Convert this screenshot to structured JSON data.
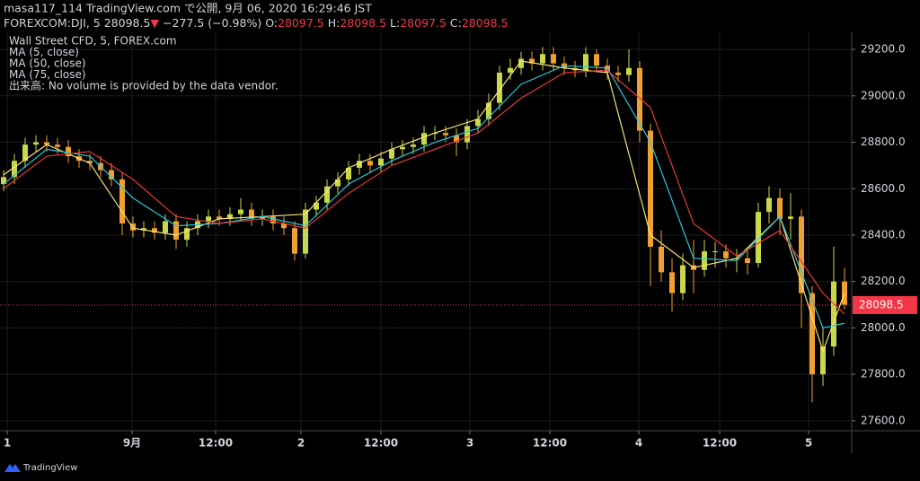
{
  "header": {
    "line1": "masa117_114 TradingView.com で公開, 9月 06, 2020 16:29:46 JST",
    "symbol": "FOREXCOM:DJI, 5",
    "price": "28098.5",
    "arrow": "▼",
    "change": "−277.5 (−0.98%)",
    "o_label": "O:",
    "o_value": "28097.5",
    "h_label": "H:",
    "h_value": "28098.5",
    "l_label": "L:",
    "l_value": "28097.5",
    "c_label": "C:",
    "c_value": "28098.5"
  },
  "footer": {
    "brand": "TradingView"
  },
  "chart_data": {
    "type": "candlestick",
    "legend": [
      "Wall Street CFD, 5, FOREX.com",
      "MA (5, close)",
      "MA (50, close)",
      "MA (75, close)",
      "出来高: No volume is provided by the data vendor."
    ],
    "up_color": "#c9d84a",
    "down_color": "#f0a030",
    "grid": true,
    "xlim": [
      0,
      948
    ],
    "xticks": [
      {
        "value": 8,
        "label": "1"
      },
      {
        "value": 147,
        "label": "9月"
      },
      {
        "value": 240,
        "label": "12:00"
      },
      {
        "value": 335,
        "label": "2"
      },
      {
        "value": 424,
        "label": "12:00"
      },
      {
        "value": 523,
        "label": "3"
      },
      {
        "value": 612,
        "label": "12:00"
      },
      {
        "value": 711,
        "label": "4"
      },
      {
        "value": 801,
        "label": "12:00"
      },
      {
        "value": 900,
        "label": "5"
      }
    ],
    "ylim": [
      27557,
      29297
    ],
    "yticks": [
      {
        "value": 27600,
        "label": "27600.0"
      },
      {
        "value": 27800,
        "label": "27800.0"
      },
      {
        "value": 28000,
        "label": "28000.0"
      },
      {
        "value": 28200,
        "label": "28200.0"
      },
      {
        "value": 28400,
        "label": "28400.0"
      },
      {
        "value": 28600,
        "label": "28600.0"
      },
      {
        "value": 28800,
        "label": "28800.0"
      },
      {
        "value": 29000,
        "label": "29000.0"
      },
      {
        "value": 29200,
        "label": "29200.0"
      }
    ],
    "last_price": 28098.5,
    "last_color": "#f23645",
    "candles": {
      "x": [
        4,
        16,
        28,
        40,
        52,
        64,
        76,
        88,
        100,
        112,
        124,
        136,
        148,
        160,
        172,
        184,
        196,
        208,
        220,
        232,
        244,
        256,
        268,
        280,
        292,
        304,
        316,
        328,
        340,
        352,
        364,
        376,
        388,
        400,
        412,
        424,
        436,
        448,
        460,
        472,
        484,
        496,
        508,
        520,
        532,
        544,
        556,
        568,
        580,
        592,
        604,
        616,
        628,
        640,
        652,
        664,
        676,
        688,
        700,
        712,
        724,
        736,
        748,
        760,
        772,
        784,
        796,
        808,
        820,
        832,
        844,
        856,
        868,
        880,
        892,
        904,
        916,
        928,
        940
      ],
      "open": [
        28620,
        28650,
        28720,
        28790,
        28800,
        28790,
        28780,
        28740,
        28720,
        28710,
        28680,
        28640,
        28450,
        28420,
        28430,
        28410,
        28460,
        28380,
        28430,
        28460,
        28480,
        28470,
        28490,
        28510,
        28470,
        28480,
        28450,
        28430,
        28320,
        28510,
        28540,
        28610,
        28640,
        28690,
        28720,
        28700,
        28730,
        28770,
        28780,
        28790,
        28840,
        28840,
        28830,
        28800,
        28870,
        28900,
        28970,
        29100,
        29120,
        29160,
        29140,
        29180,
        29140,
        29120,
        29110,
        29180,
        29130,
        29100,
        29090,
        29120,
        28850,
        28350,
        28240,
        28150,
        28270,
        28250,
        28330,
        28330,
        28300,
        28300,
        28280,
        28500,
        28560,
        28470,
        28480,
        28150,
        27800,
        27920,
        28200
      ],
      "high": [
        28680,
        28750,
        28820,
        28830,
        28830,
        28820,
        28810,
        28770,
        28750,
        28740,
        28710,
        28670,
        28480,
        28460,
        28460,
        28490,
        28490,
        28460,
        28490,
        28510,
        28510,
        28520,
        28560,
        28540,
        28510,
        28510,
        28480,
        28460,
        28540,
        28570,
        28640,
        28670,
        28720,
        28750,
        28750,
        28760,
        28800,
        28810,
        28820,
        28870,
        28870,
        28870,
        28860,
        28900,
        28940,
        29010,
        29130,
        29160,
        29190,
        29190,
        29210,
        29210,
        29170,
        29150,
        29210,
        29200,
        29160,
        29130,
        29200,
        29150,
        28880,
        28420,
        28300,
        28320,
        28380,
        28380,
        28370,
        28360,
        28340,
        28340,
        28540,
        28610,
        28600,
        28580,
        28510,
        28180,
        28000,
        28350,
        28260
      ],
      "low": [
        28590,
        28620,
        28690,
        28760,
        28760,
        28750,
        28710,
        28690,
        28680,
        28650,
        28610,
        28400,
        28390,
        28390,
        28380,
        28380,
        28340,
        28350,
        28400,
        28430,
        28440,
        28440,
        28460,
        28440,
        28440,
        28420,
        28400,
        28290,
        28300,
        28480,
        28510,
        28580,
        28610,
        28660,
        28670,
        28670,
        28700,
        28740,
        28750,
        28760,
        28810,
        28800,
        28740,
        28770,
        28840,
        28870,
        28940,
        29070,
        29090,
        29110,
        29110,
        29110,
        29090,
        29080,
        29080,
        29100,
        29070,
        29060,
        29060,
        28800,
        28180,
        28200,
        28070,
        28120,
        28150,
        28220,
        28260,
        28260,
        28240,
        28230,
        28260,
        28450,
        28400,
        28380,
        28000,
        27680,
        27750,
        27880,
        28080
      ],
      "close": [
        28650,
        28720,
        28790,
        28800,
        28790,
        28780,
        28740,
        28720,
        28710,
        28680,
        28640,
        28450,
        28420,
        28430,
        28410,
        28460,
        28380,
        28430,
        28460,
        28480,
        28470,
        28490,
        28510,
        28470,
        28480,
        28450,
        28430,
        28320,
        28510,
        28540,
        28610,
        28640,
        28690,
        28720,
        28700,
        28730,
        28770,
        28780,
        28790,
        28840,
        28840,
        28830,
        28800,
        28870,
        28900,
        28970,
        29100,
        29120,
        29160,
        29140,
        29180,
        29140,
        29120,
        29110,
        29180,
        29130,
        29100,
        29090,
        29120,
        28850,
        28350,
        28240,
        28150,
        28270,
        28250,
        28330,
        28330,
        28300,
        28300,
        28280,
        28500,
        28560,
        28470,
        28480,
        28150,
        27800,
        27920,
        28200,
        28100
      ]
    },
    "series": [
      {
        "name": "MA (5, close)",
        "color": "#f5e27a",
        "x": [
          4,
          52,
          100,
          148,
          196,
          244,
          292,
          340,
          388,
          436,
          484,
          532,
          580,
          628,
          676,
          724,
          772,
          820,
          868,
          916,
          940
        ],
        "values": [
          28660,
          28790,
          28710,
          28430,
          28400,
          28470,
          28480,
          28490,
          28690,
          28770,
          28840,
          28900,
          29150,
          29120,
          29100,
          28400,
          28260,
          28300,
          28480,
          27900,
          28150
        ]
      },
      {
        "name": "MA (50, close)",
        "color": "#26c6da",
        "x": [
          4,
          52,
          100,
          148,
          196,
          244,
          292,
          340,
          388,
          436,
          484,
          532,
          580,
          628,
          676,
          724,
          772,
          820,
          868,
          916,
          940
        ],
        "values": [
          28620,
          28770,
          28740,
          28560,
          28440,
          28450,
          28480,
          28440,
          28620,
          28720,
          28800,
          28860,
          29050,
          29130,
          29120,
          28800,
          28300,
          28290,
          28480,
          28000,
          28020
        ]
      },
      {
        "name": "MA (75, close)",
        "color": "#e53935",
        "x": [
          4,
          52,
          100,
          148,
          196,
          244,
          292,
          340,
          388,
          436,
          484,
          532,
          580,
          628,
          676,
          724,
          772,
          820,
          868,
          916,
          940
        ],
        "values": [
          28600,
          28740,
          28760,
          28640,
          28480,
          28450,
          28470,
          28430,
          28580,
          28700,
          28770,
          28840,
          28990,
          29100,
          29110,
          28950,
          28450,
          28310,
          28420,
          28150,
          28060
        ]
      }
    ]
  }
}
